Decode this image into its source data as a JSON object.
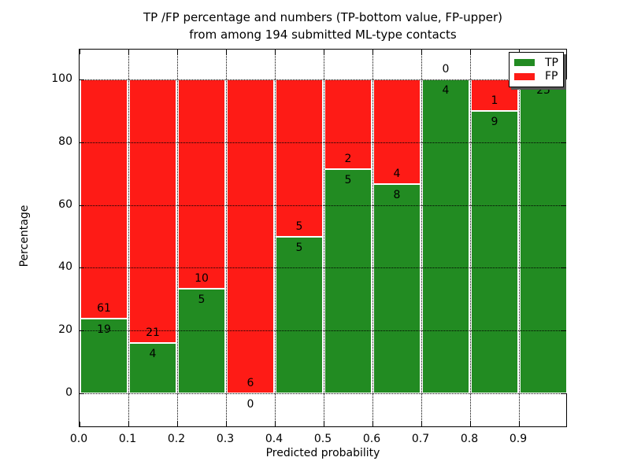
{
  "chart_data": {
    "type": "bar",
    "stacked": true,
    "title_line1": "TP /FP percentage and numbers (TP-bottom value, FP-upper)",
    "title_line2": "from among 194 submitted ML-type contacts",
    "xlabel": "Predicted probability",
    "ylabel": "Percentage",
    "total_contacts": 194,
    "bins": [
      "0.0-0.1",
      "0.1-0.2",
      "0.2-0.3",
      "0.3-0.4",
      "0.4-0.5",
      "0.5-0.6",
      "0.6-0.7",
      "0.7-0.8",
      "0.8-0.9",
      "0.9-1.0"
    ],
    "x_tick_labels": [
      "0.0",
      "0.1",
      "0.2",
      "0.3",
      "0.4",
      "0.5",
      "0.6",
      "0.7",
      "0.8",
      "0.9"
    ],
    "y_tick_values": [
      0,
      20,
      40,
      60,
      80,
      100
    ],
    "xlim": [
      0.0,
      1.0
    ],
    "ylim_pct": [
      0,
      100
    ],
    "grid": {
      "style": "dotted",
      "color": "#000000"
    },
    "series": [
      {
        "name": "TP",
        "color": "#228b22",
        "counts": [
          19,
          4,
          5,
          0,
          5,
          5,
          8,
          4,
          9,
          25
        ]
      },
      {
        "name": "FP",
        "color": "#fe1b16",
        "counts": [
          61,
          21,
          10,
          6,
          5,
          2,
          4,
          0,
          1,
          0
        ]
      }
    ],
    "tp_percent_per_bin": [
      23.75,
      16.0,
      33.33,
      0.0,
      50.0,
      71.43,
      66.67,
      100.0,
      90.0,
      100.0
    ],
    "legend": {
      "position": "upper right",
      "labels": [
        "TP",
        "FP"
      ]
    }
  }
}
